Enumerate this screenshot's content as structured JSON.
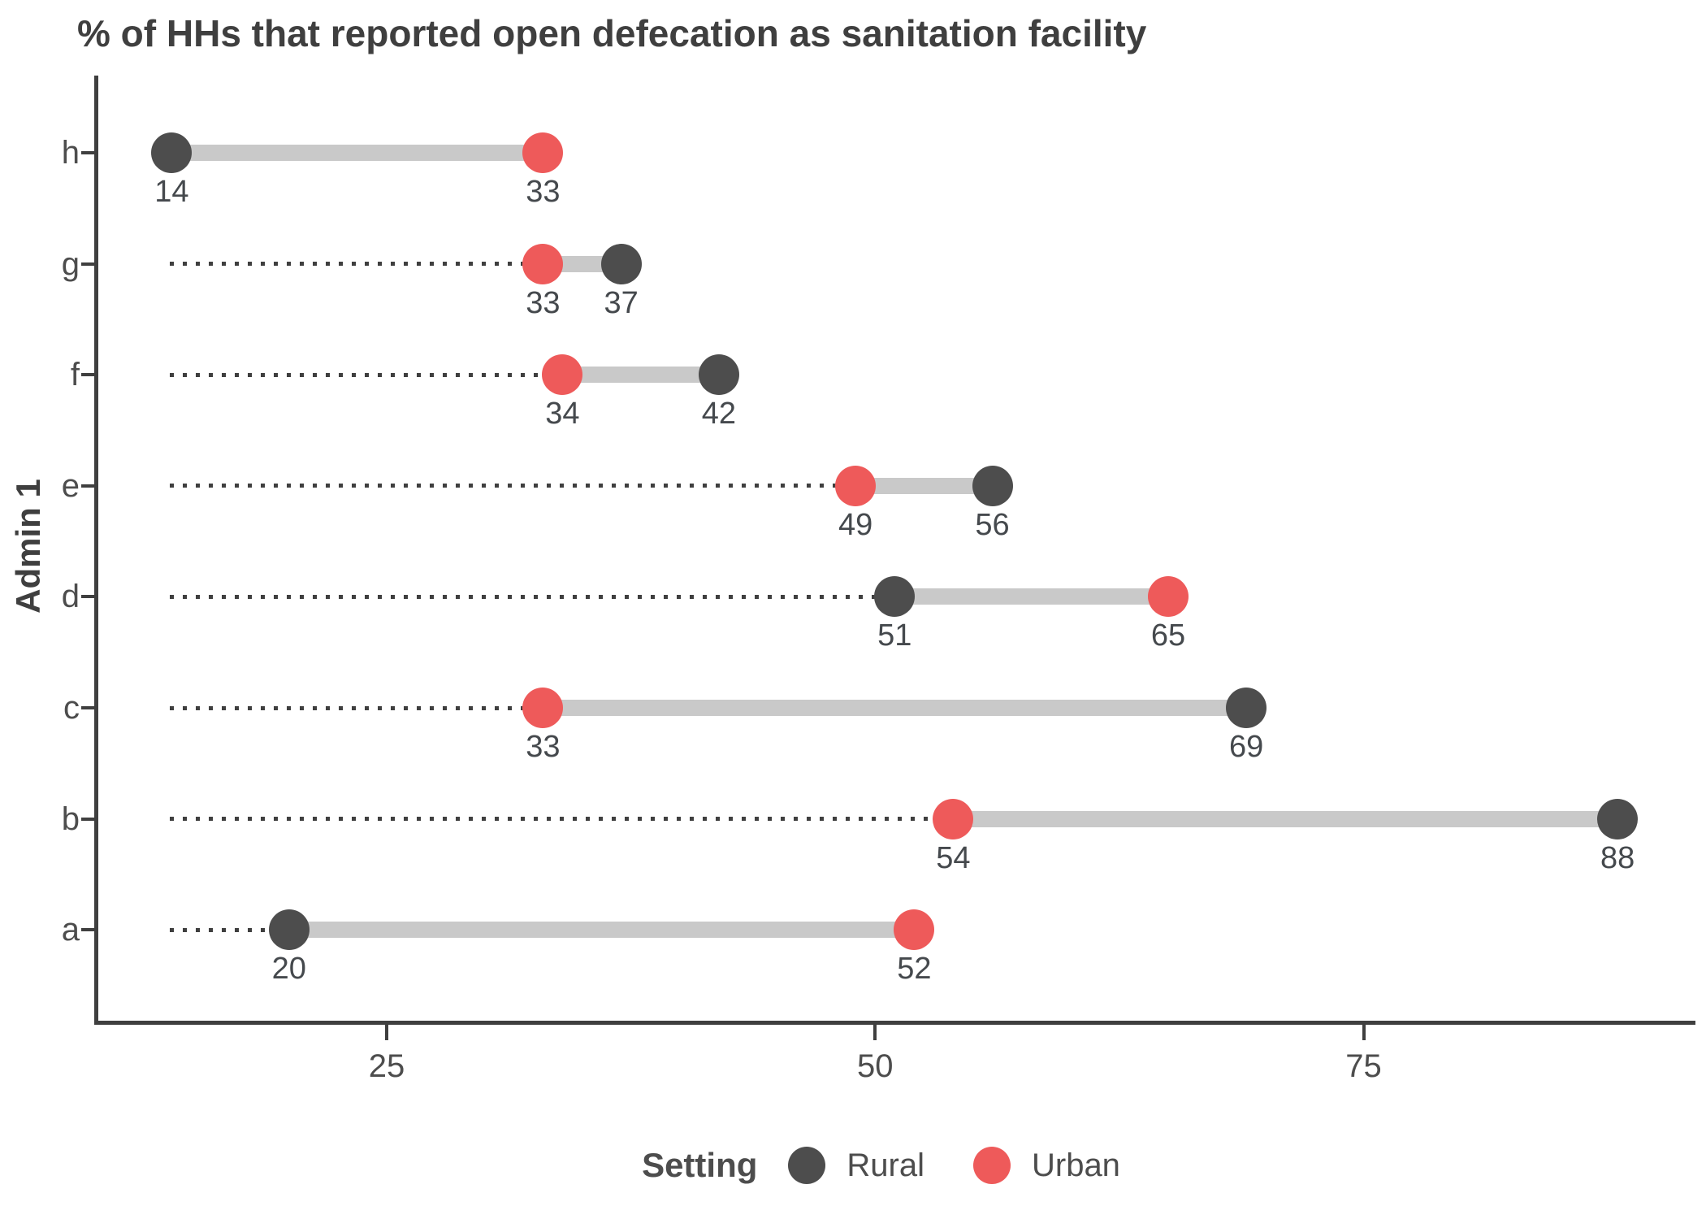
{
  "title": "% of HHs that reported open defecation as sanitation facility",
  "colors": {
    "rural": "#4d4d4d",
    "urban": "#ee5a5a",
    "connector": "#c9c9c9",
    "leader": "#3f3f3f",
    "axis": "#3f3f3f",
    "text": "#4d4d4d"
  },
  "chart_data": {
    "type": "dumbbell",
    "title": "% of HHs that reported open defecation as sanitation facility",
    "xlabel": "",
    "ylabel": "Admin 1",
    "xticks": [
      25,
      50,
      75
    ],
    "xlim": [
      10,
      90.5
    ],
    "grid": false,
    "row_order_top_to_bottom": true,
    "categories": [
      "h",
      "g",
      "f",
      "e",
      "d",
      "c",
      "b",
      "a"
    ],
    "series": [
      {
        "name": "Rural",
        "color": "#4d4d4d",
        "values": [
          14,
          37,
          42,
          56,
          51,
          69,
          88,
          20
        ]
      },
      {
        "name": "Urban",
        "color": "#ee5a5a",
        "values": [
          33,
          33,
          34,
          49,
          65,
          33,
          54,
          52
        ]
      }
    ],
    "legend": {
      "title": "Setting",
      "position": "bottom",
      "entries": [
        {
          "label": "Rural",
          "color": "#4d4d4d"
        },
        {
          "label": "Urban",
          "color": "#ee5a5a"
        }
      ]
    }
  }
}
